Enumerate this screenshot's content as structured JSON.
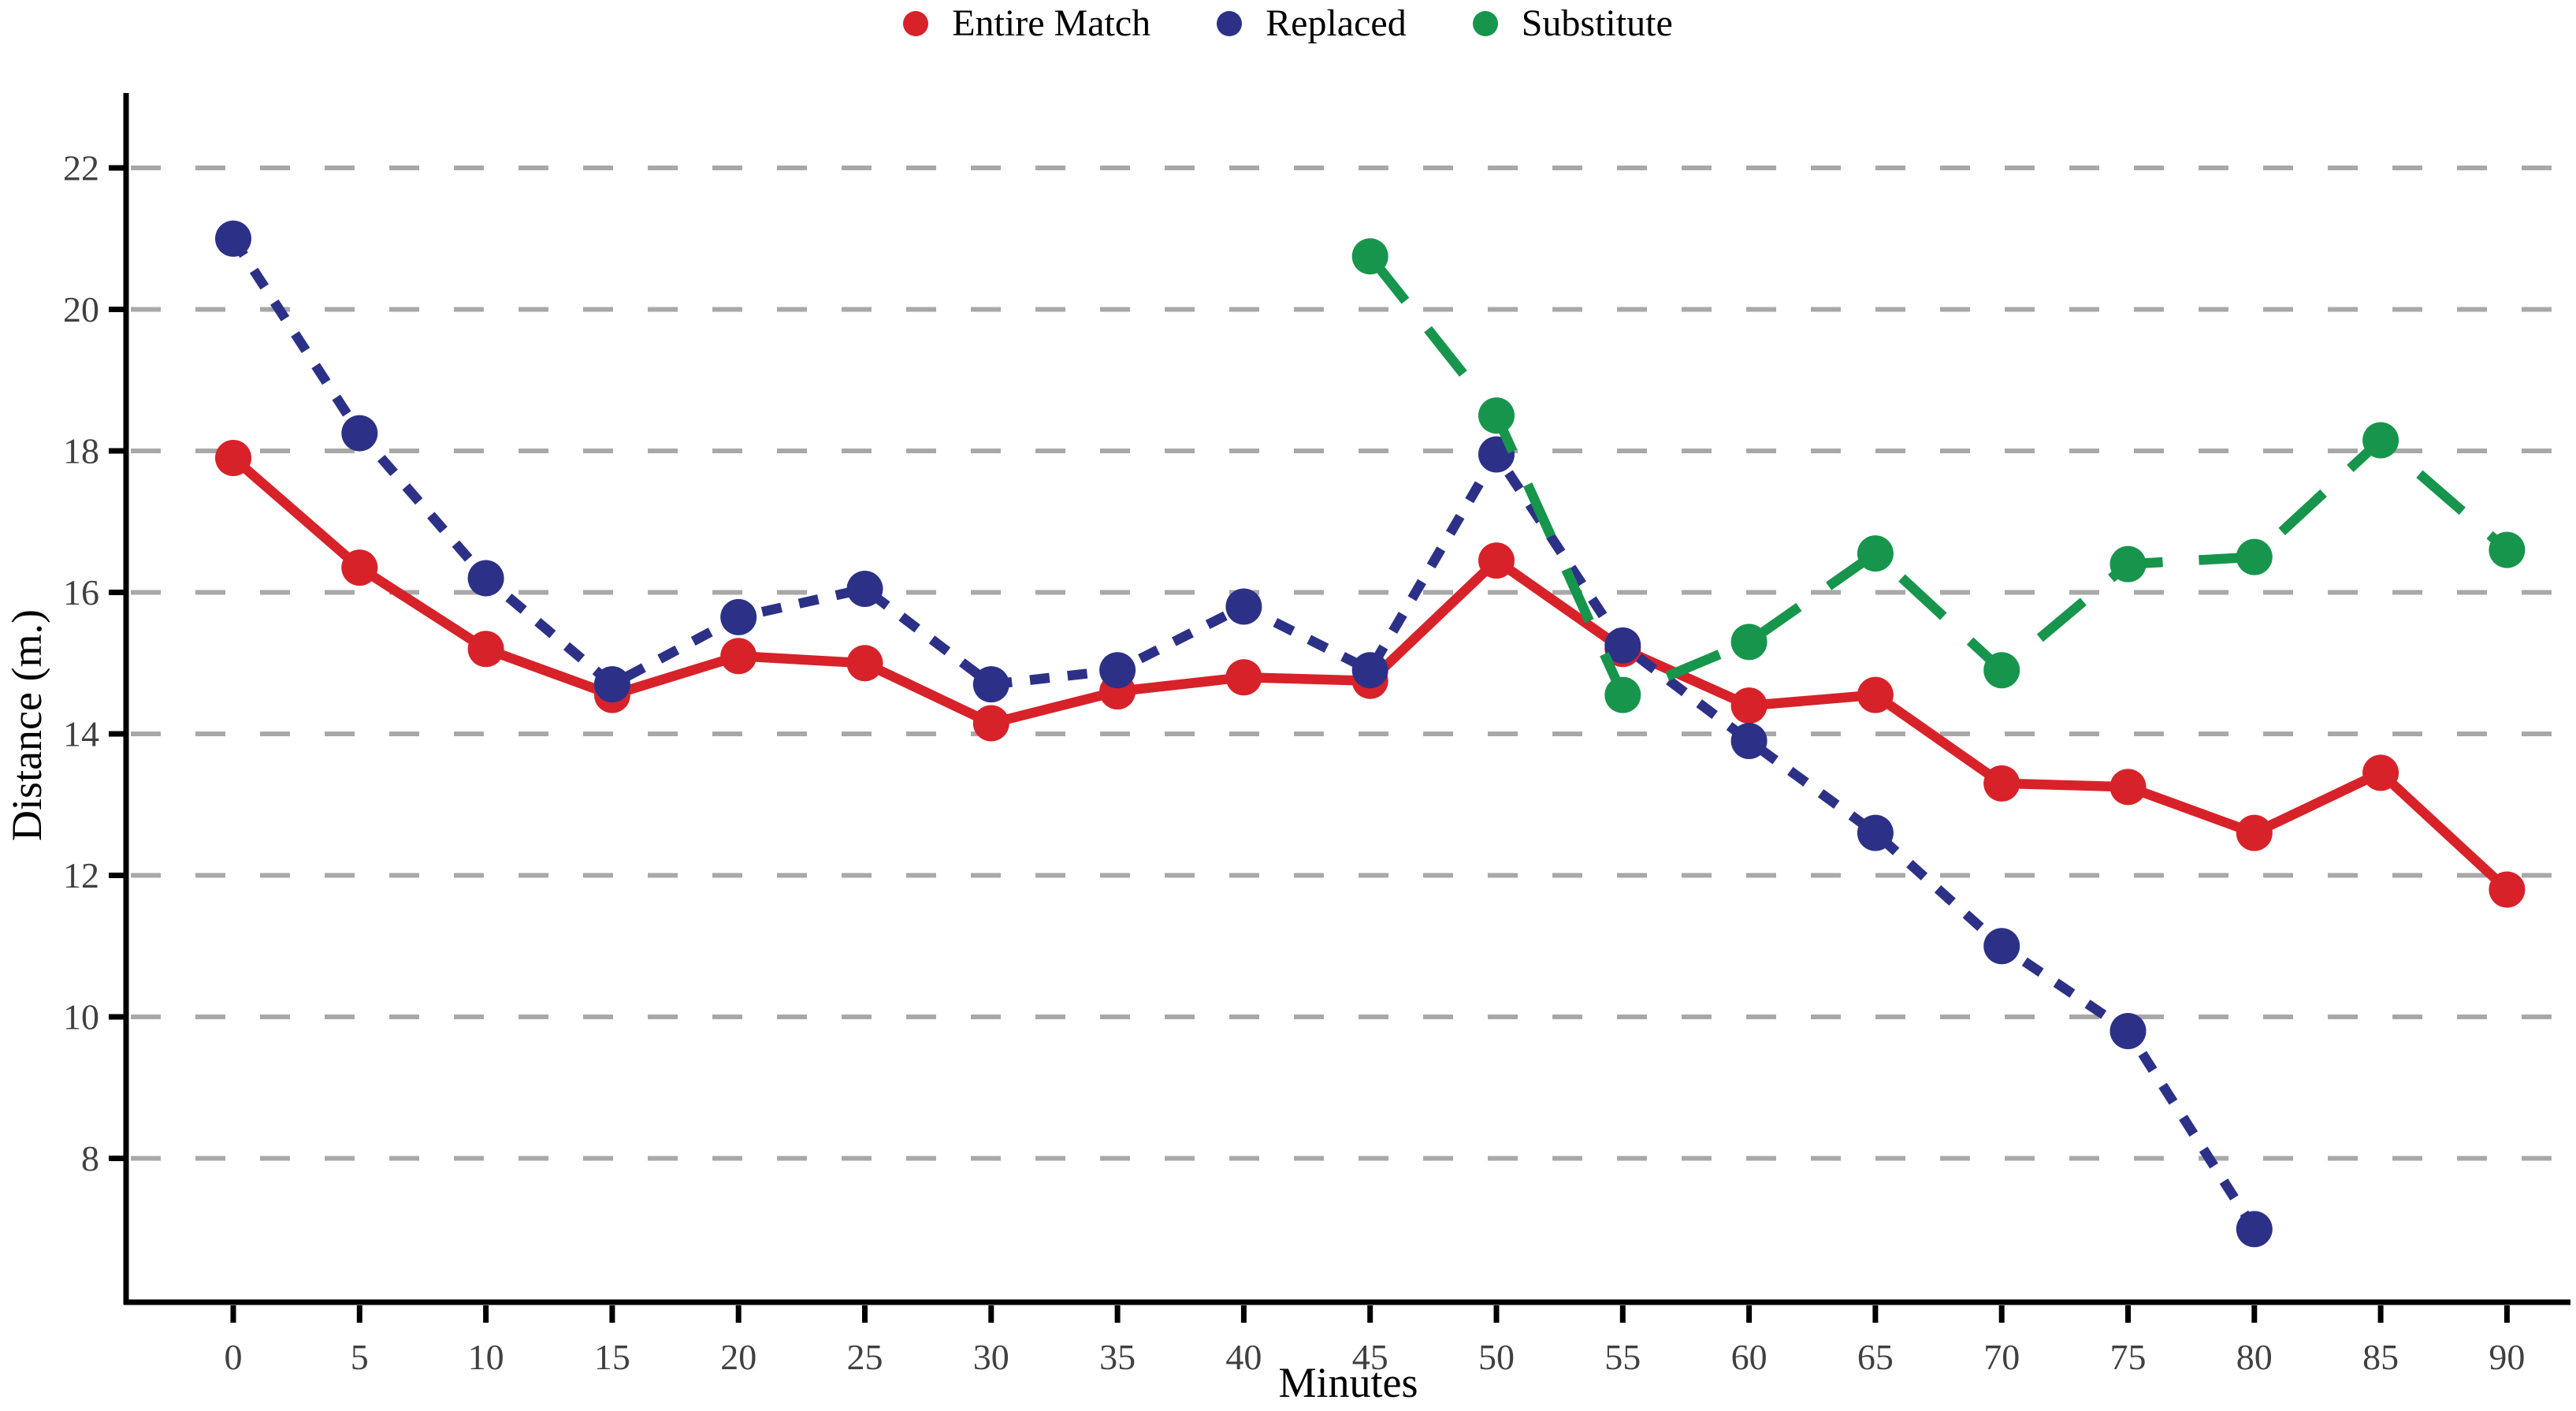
{
  "legend": {
    "items": [
      {
        "label": "Entire Match",
        "color": "#d7222a"
      },
      {
        "label": "Replaced",
        "color": "#2c3187"
      },
      {
        "label": "Substitute",
        "color": "#17954c"
      }
    ]
  },
  "axes": {
    "x_tick_labels": [
      "0",
      "5",
      "10",
      "15",
      "20",
      "25",
      "30",
      "35",
      "40",
      "45",
      "50",
      "55",
      "60",
      "65",
      "70",
      "75",
      "80",
      "85",
      "90"
    ],
    "y_tick_labels": [
      "8",
      "10",
      "12",
      "14",
      "16",
      "18",
      "20",
      "22"
    ],
    "tick_label_color": "#404040",
    "gridline_color": "#a8a8a8",
    "axis_color": "#000000"
  },
  "chart_data": {
    "type": "line",
    "title": "",
    "xlabel": "Minutes",
    "ylabel": "Distance (m.)",
    "categories": [
      0,
      5,
      10,
      15,
      20,
      25,
      30,
      35,
      40,
      45,
      50,
      55,
      60,
      65,
      70,
      75,
      80,
      85,
      90
    ],
    "y_ticks": [
      8,
      10,
      12,
      14,
      16,
      18,
      20,
      22
    ],
    "ylim": [
      6.0,
      23.0
    ],
    "grid": "horizontal dashed at each y tick",
    "legend_position": "top center",
    "series": [
      {
        "name": "Entire Match",
        "color": "#d7222a",
        "line_style": "solid",
        "values": [
          17.9,
          16.35,
          15.2,
          14.55,
          15.1,
          15.0,
          14.15,
          14.6,
          14.8,
          14.75,
          16.45,
          15.2,
          14.4,
          14.55,
          13.3,
          13.25,
          12.6,
          13.45,
          11.8
        ]
      },
      {
        "name": "Replaced",
        "color": "#2c3187",
        "line_style": "dotted",
        "values": [
          21.0,
          18.25,
          16.2,
          14.7,
          15.65,
          16.05,
          14.7,
          14.9,
          15.8,
          14.9,
          17.95,
          15.25,
          13.9,
          12.6,
          11.0,
          9.8,
          7.0,
          null,
          null
        ]
      },
      {
        "name": "Substitute",
        "color": "#17954c",
        "line_style": "dashed",
        "values": [
          null,
          null,
          null,
          null,
          null,
          null,
          null,
          null,
          null,
          20.75,
          18.5,
          14.55,
          15.3,
          16.55,
          14.9,
          16.4,
          16.5,
          18.15,
          16.6
        ]
      }
    ]
  }
}
